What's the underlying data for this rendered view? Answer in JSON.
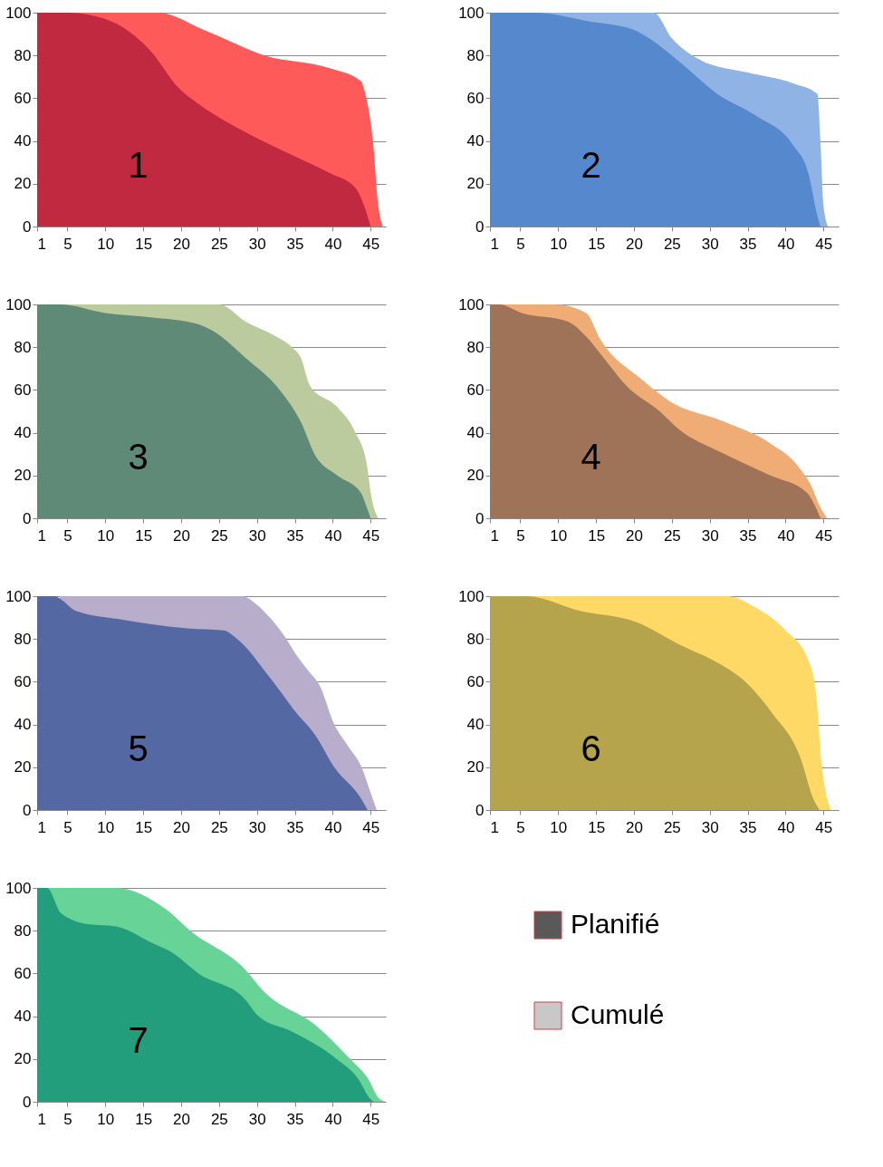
{
  "chart_data": [
    {
      "type": "area",
      "annotations": [
        "1"
      ],
      "xlim": [
        1,
        47
      ],
      "xticks": [
        1,
        5,
        10,
        15,
        20,
        25,
        30,
        35,
        40,
        45
      ],
      "ylim": [
        0,
        100
      ],
      "yticks": [
        0,
        20,
        40,
        60,
        80,
        100
      ],
      "grid": "y",
      "series": [
        {
          "color": "#c0293f",
          "x": [
            1,
            5,
            10,
            16,
            19.6,
            22,
            28,
            33.7,
            39.6,
            43,
            44.3,
            45
          ],
          "values": [
            100,
            100,
            97,
            82,
            65,
            58,
            45,
            35,
            25,
            18,
            8,
            0
          ]
        },
        {
          "color": "#ff5a5a",
          "x": [
            1,
            17,
            23,
            31,
            39.6,
            43.7,
            44.3,
            45.3,
            46,
            46.6
          ],
          "values": [
            100,
            100,
            92,
            80,
            74,
            68,
            62,
            40,
            10,
            0
          ]
        }
      ]
    },
    {
      "type": "area",
      "annotations": [
        "2"
      ],
      "xlim": [
        1,
        47
      ],
      "xticks": [
        1,
        5,
        10,
        15,
        20,
        25,
        30,
        35,
        40,
        45
      ],
      "ylim": [
        0,
        100
      ],
      "yticks": [
        0,
        20,
        40,
        60,
        80,
        100
      ],
      "grid": "y",
      "series": [
        {
          "color": "#5588cc",
          "x": [
            1,
            7,
            14,
            20,
            22,
            26,
            31,
            36,
            41,
            43,
            44.2,
            44.6
          ],
          "values": [
            100,
            100,
            96,
            92,
            88,
            77,
            62,
            52,
            38,
            25,
            5,
            0
          ]
        },
        {
          "color": "#8fb3e5",
          "x": [
            1,
            22.6,
            25,
            28.7,
            35,
            41,
            44.2,
            44.6,
            45,
            45.6
          ],
          "values": [
            100,
            100,
            88,
            78,
            72,
            67,
            62,
            40,
            10,
            0
          ]
        }
      ]
    },
    {
      "type": "area",
      "annotations": [
        "3"
      ],
      "xlim": [
        1,
        47
      ],
      "xticks": [
        1,
        5,
        10,
        15,
        20,
        25,
        30,
        35,
        40,
        45
      ],
      "ylim": [
        0,
        100
      ],
      "yticks": [
        0,
        20,
        40,
        60,
        80,
        100
      ],
      "grid": "y",
      "series": [
        {
          "color": "#5f8a78",
          "x": [
            1,
            4,
            10,
            16,
            22,
            24,
            28.5,
            33,
            35.8,
            37.6,
            40.6,
            43.7,
            44.5,
            45
          ],
          "values": [
            100,
            100,
            96,
            94,
            91,
            88,
            75,
            60,
            45,
            30,
            20,
            12,
            5,
            0
          ]
        },
        {
          "color": "#bccb9e",
          "x": [
            1,
            25,
            28.5,
            32,
            34.6,
            35.8,
            37,
            40.6,
            43,
            44.5,
            45.1,
            46
          ],
          "values": [
            100,
            100,
            92,
            86,
            80,
            75,
            62,
            52,
            40,
            25,
            10,
            0
          ]
        }
      ]
    },
    {
      "type": "area",
      "annotations": [
        "4"
      ],
      "xlim": [
        1,
        47
      ],
      "xticks": [
        1,
        5,
        10,
        15,
        20,
        25,
        30,
        35,
        40,
        45
      ],
      "ylim": [
        0,
        100
      ],
      "yticks": [
        0,
        20,
        40,
        60,
        80,
        100
      ],
      "grid": "y",
      "series": [
        {
          "color": "#9e7358",
          "x": [
            1,
            2.2,
            5.2,
            11.3,
            13.7,
            16,
            19,
            23.4,
            25.8,
            32,
            38,
            42.8,
            44,
            44.6
          ],
          "values": [
            100,
            100,
            96,
            92,
            85,
            75,
            62,
            50,
            42,
            30,
            20,
            12,
            5,
            0
          ]
        },
        {
          "color": "#f0ac75",
          "x": [
            1,
            9.5,
            13.7,
            15.5,
            21,
            24.6,
            32,
            38,
            41.5,
            43.4,
            44.6,
            45.5
          ],
          "values": [
            100,
            100,
            96,
            84,
            65,
            55,
            45,
            35,
            25,
            15,
            5,
            0
          ]
        }
      ]
    },
    {
      "type": "area",
      "annotations": [
        "5"
      ],
      "xlim": [
        1,
        47
      ],
      "xticks": [
        1,
        5,
        10,
        15,
        20,
        25,
        30,
        35,
        40,
        45
      ],
      "ylim": [
        0,
        100
      ],
      "yticks": [
        0,
        20,
        40,
        60,
        80,
        100
      ],
      "grid": "y",
      "series": [
        {
          "color": "#5468a4",
          "x": [
            1,
            3.2,
            6.2,
            12.3,
            15.9,
            20.8,
            25.6,
            27.4,
            31.7,
            35.3,
            37.7,
            40.2,
            43.8,
            44.6
          ],
          "values": [
            100,
            100,
            93,
            89,
            87,
            85,
            84,
            80,
            62,
            45,
            35,
            20,
            5,
            0
          ]
        },
        {
          "color": "#b8aecb",
          "x": [
            4,
            10,
            20,
            28,
            30,
            31.7,
            33.5,
            35.3,
            36.8,
            38.3,
            40.2,
            42,
            43.8,
            45,
            45.8
          ],
          "values": [
            100,
            100,
            100,
            100,
            96,
            90,
            82,
            72,
            65,
            58,
            40,
            30,
            20,
            8,
            0
          ]
        }
      ]
    },
    {
      "type": "area",
      "annotations": [
        "6"
      ],
      "xlim": [
        1,
        47
      ],
      "xticks": [
        1,
        5,
        10,
        15,
        20,
        25,
        30,
        35,
        40,
        45
      ],
      "ylim": [
        0,
        100
      ],
      "yticks": [
        0,
        20,
        40,
        60,
        80,
        100
      ],
      "grid": "y",
      "series": [
        {
          "color": "#b5a44b",
          "x": [
            1,
            5.8,
            13,
            20.2,
            26.2,
            31,
            34.7,
            38.3,
            41.9,
            43.7,
            44.5
          ],
          "values": [
            100,
            100,
            93,
            88,
            77,
            69,
            60,
            45,
            25,
            5,
            0
          ]
        },
        {
          "color": "#ffd966",
          "x": [
            1,
            32.3,
            35.9,
            40,
            43,
            44,
            44.8,
            45.5,
            46
          ],
          "values": [
            100,
            100,
            95,
            84,
            70,
            55,
            20,
            5,
            0
          ]
        }
      ]
    },
    {
      "type": "area",
      "annotations": [
        "7"
      ],
      "xlim": [
        1,
        47
      ],
      "xticks": [
        1,
        5,
        10,
        15,
        20,
        25,
        30,
        35,
        40,
        45
      ],
      "ylim": [
        0,
        100
      ],
      "yticks": [
        0,
        20,
        40,
        60,
        80,
        100
      ],
      "grid": "y",
      "series": [
        {
          "color": "#239e7c",
          "x": [
            1,
            2.3,
            4.2,
            7.8,
            11.4,
            16.3,
            18.7,
            22.3,
            28.4,
            30.2,
            34.5,
            40.5,
            43.5,
            44.8,
            45.4
          ],
          "values": [
            100,
            100,
            88,
            83,
            82,
            74,
            70,
            60,
            48,
            40,
            33,
            20,
            10,
            2,
            0
          ]
        },
        {
          "color": "#68d396",
          "x": [
            1,
            11.4,
            18,
            21.2,
            28.4,
            30.8,
            38,
            42.3,
            44.8,
            46,
            47
          ],
          "values": [
            100,
            100,
            90,
            80,
            62,
            52,
            35,
            20,
            10,
            2,
            0
          ]
        }
      ]
    },
    {
      "type": "other",
      "categories": [
        "Planifié",
        "Cumulé"
      ],
      "colors": [
        "#595959",
        "#c8c8c8"
      ]
    }
  ]
}
